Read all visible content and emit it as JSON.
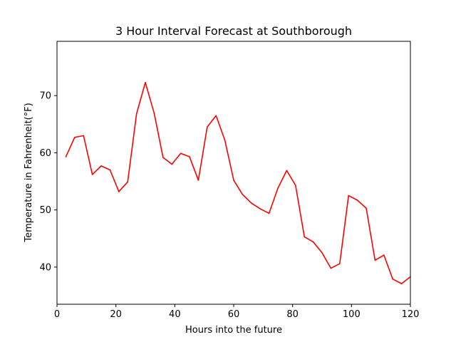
{
  "chart_data": {
    "type": "line",
    "title": "3 Hour Interval Forecast at Southborough",
    "xlabel": "Hours into the future",
    "ylabel": "Temperature in Fahrenheit(°F)",
    "xlim": [
      0,
      120
    ],
    "ylim": [
      33.5,
      79.5
    ],
    "x_ticks": [
      0,
      20,
      40,
      60,
      80,
      100,
      120
    ],
    "y_ticks": [
      40,
      50,
      60,
      70
    ],
    "grid": false,
    "series": [
      {
        "color": "#ff0000",
        "x": [
          3,
          6,
          9,
          12,
          15,
          18,
          21,
          24,
          27,
          30,
          33,
          36,
          39,
          42,
          45,
          48,
          51,
          54,
          57,
          60,
          63,
          66,
          69,
          72,
          75,
          78,
          81,
          84,
          87,
          90,
          93,
          96,
          99,
          102,
          105,
          108,
          111,
          114,
          117,
          120
        ],
        "y": [
          59.3,
          62.7,
          63.0,
          56.2,
          57.7,
          57.0,
          53.2,
          54.9,
          66.8,
          72.3,
          66.9,
          59.2,
          58.0,
          59.9,
          59.3,
          55.2,
          64.5,
          66.5,
          62.2,
          55.2,
          52.7,
          51.2,
          50.2,
          49.4,
          53.8,
          56.9,
          54.3,
          45.3,
          44.4,
          42.5,
          39.8,
          40.6,
          52.5,
          51.7,
          50.3,
          41.2,
          42.1,
          37.9,
          37.1,
          38.3
        ]
      }
    ]
  }
}
